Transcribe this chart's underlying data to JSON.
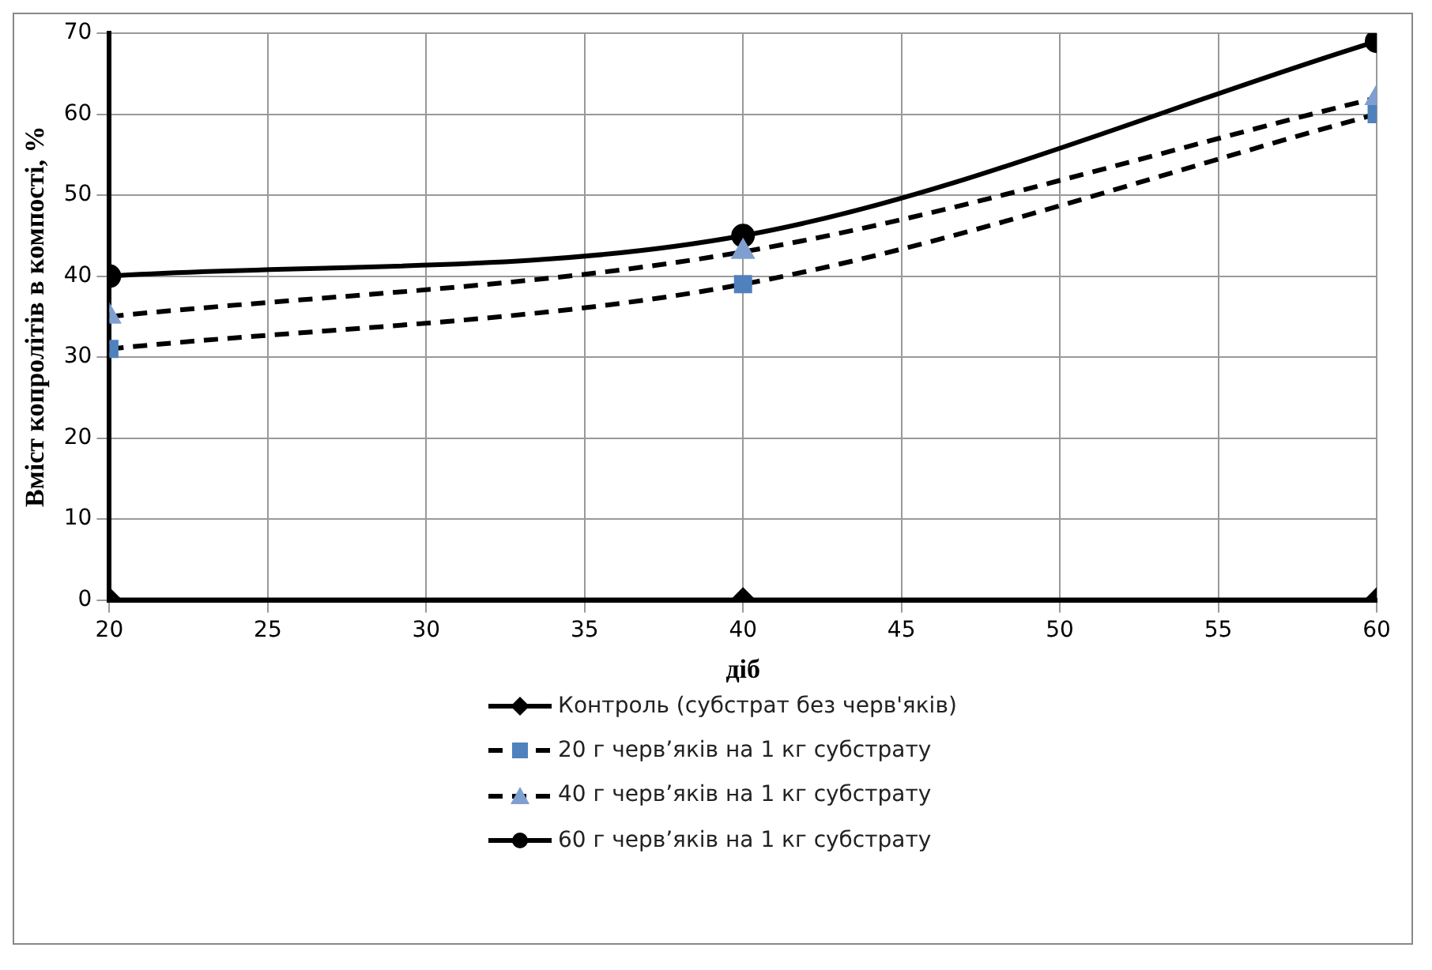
{
  "chart_data": {
    "type": "line",
    "xlabel": "діб",
    "ylabel": "Вміст копролітів в компості, %",
    "x": [
      20,
      40,
      60
    ],
    "xlim": [
      20,
      60
    ],
    "xticks": [
      20,
      25,
      30,
      35,
      40,
      45,
      50,
      55,
      60
    ],
    "ylim": [
      0,
      70
    ],
    "yticks": [
      0,
      10,
      20,
      30,
      40,
      50,
      60,
      70
    ],
    "grid": true,
    "legend": "bottom",
    "series": [
      {
        "name": "Контроль (субстрат без черв'яків)",
        "color": "#000000",
        "values": [
          0,
          0,
          0
        ],
        "marker": "diamond",
        "line_style": "solid"
      },
      {
        "name": "20 г черв’яків на 1 кг субстрату",
        "color": "#4f81bd",
        "values": [
          31,
          39,
          60
        ],
        "marker": "square",
        "line_style": "dashed"
      },
      {
        "name": "40 г черв’яків на 1 кг субстрату",
        "color": "#7f9fd0",
        "values": [
          35,
          43,
          62
        ],
        "marker": "triangle",
        "line_style": "dashed"
      },
      {
        "name": "60 г черв’яків на 1 кг субстрату",
        "color": "#000000",
        "values": [
          40,
          45,
          69
        ],
        "marker": "circle",
        "line_style": "solid"
      }
    ]
  }
}
